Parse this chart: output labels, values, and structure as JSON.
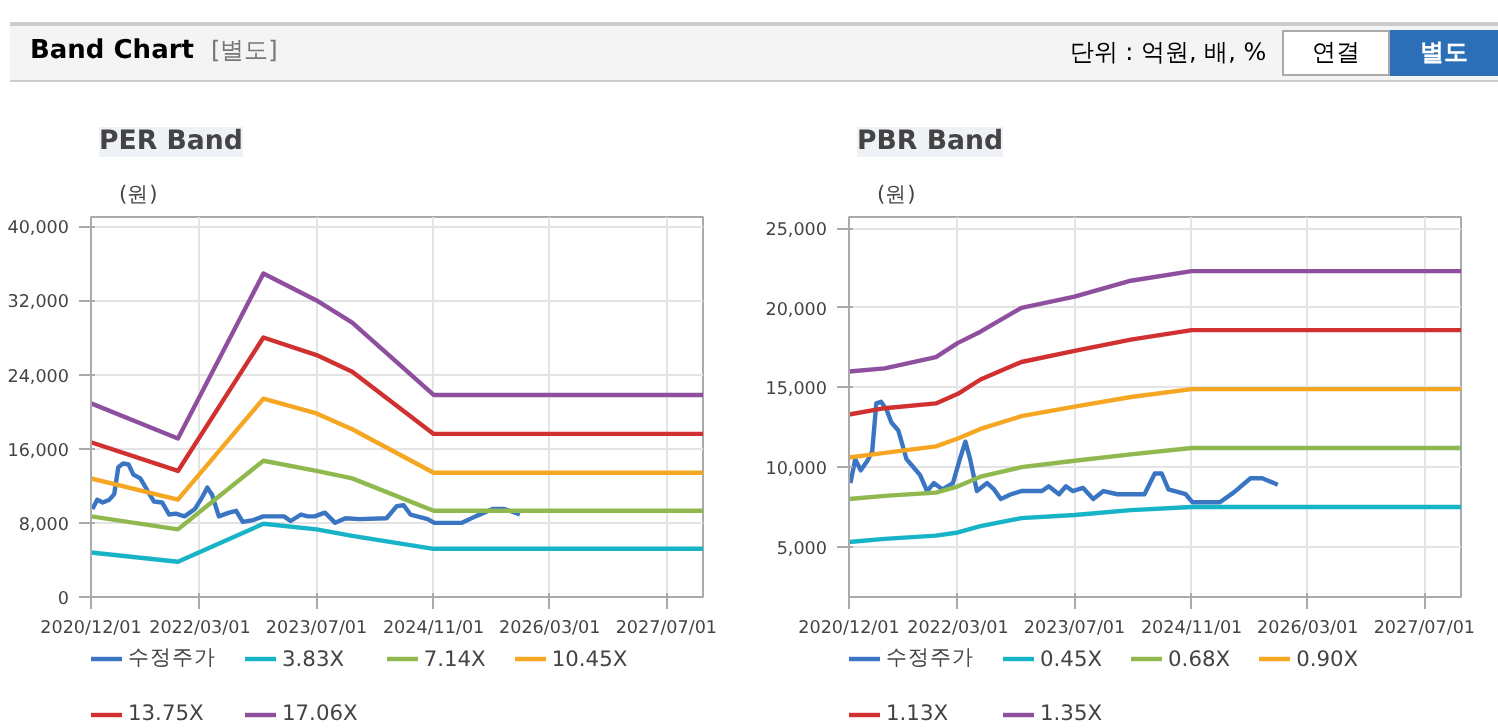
{
  "chart_data": [
    {
      "type": "line",
      "title": "PER Band",
      "ylabel": "(원)",
      "annotations": [
        "Band Chart",
        "[별도]",
        "단위 : 억원, 배, %",
        "연결",
        "별도"
      ],
      "grid": true,
      "legend": "bottom",
      "xlim": [
        "2020-12-01",
        "2027-12-01"
      ],
      "ylim": [
        0,
        41000
      ],
      "xticks": [
        {
          "value": "2020-12-01",
          "label": "2020/12/01"
        },
        {
          "value": "2022-03-01",
          "label": "2022/03/01"
        },
        {
          "value": "2023-07-01",
          "label": "2023/07/01"
        },
        {
          "value": "2024-11-01",
          "label": "2024/11/01"
        },
        {
          "value": "2026-03-01",
          "label": "2026/03/01"
        },
        {
          "value": "2027-07-01",
          "label": "2027/07/01"
        }
      ],
      "yticks": [
        0,
        {
          "value": 8000,
          "label": "8,000"
        },
        {
          "value": 16000,
          "label": "16,000"
        },
        {
          "value": 24000,
          "label": "24,000"
        },
        {
          "value": 32000,
          "label": "32,000"
        },
        {
          "value": 40000,
          "label": "40,000"
        }
      ],
      "series": [
        {
          "name": "수정주가",
          "color": "#3a75c4",
          "x": [
            "2020-12-07",
            "2020-12-27",
            "2021-01-19",
            "2021-02-16",
            "2021-03-08",
            "2021-03-25",
            "2021-04-14",
            "2021-05-07",
            "2021-05-27",
            "2021-06-25",
            "2021-07-29",
            "2021-08-21",
            "2021-09-24",
            "2021-10-23",
            "2021-11-20",
            "2021-12-27",
            "2022-02-08",
            "2022-03-09",
            "2022-04-01",
            "2022-04-21",
            "2022-05-19",
            "2022-07-01",
            "2022-07-30",
            "2022-08-27",
            "2022-10-09",
            "2022-11-21",
            "2023-02-15",
            "2023-03-15",
            "2023-04-27",
            "2023-05-26",
            "2023-06-23",
            "2023-08-05",
            "2023-09-17",
            "2023-10-30",
            "2023-12-26",
            "2024-04-18",
            "2024-05-31",
            "2024-06-29",
            "2024-07-27",
            "2024-10-07",
            "2024-11-04",
            "2025-02-27",
            "2025-04-25",
            "2025-07-05",
            "2025-08-23",
            "2025-10-27"
          ],
          "values": [
            9500,
            10500,
            10200,
            10500,
            11100,
            14000,
            14400,
            14300,
            13200,
            12800,
            11300,
            10300,
            10200,
            8900,
            9000,
            8700,
            9500,
            10700,
            11800,
            11000,
            8700,
            9100,
            9300,
            8100,
            8300,
            8700,
            8700,
            8200,
            8900,
            8700,
            8700,
            9100,
            8000,
            8500,
            8400,
            8500,
            9800,
            9900,
            8900,
            8400,
            8000,
            8000,
            8700,
            9500,
            9500,
            8900
          ]
        },
        {
          "name": "3.83X",
          "color": "#17b3c7",
          "x": [
            "2020-12-01",
            "2021-11-29",
            "2022-11-21",
            "2023-07-01",
            "2023-11-27",
            "2024-11-01",
            "2027-12-01"
          ],
          "values": [
            4800,
            3800,
            7900,
            7300,
            6600,
            5200,
            5200
          ]
        },
        {
          "name": "7.14X",
          "color": "#8fb84f",
          "x": [
            "2020-12-01",
            "2021-11-29",
            "2022-11-21",
            "2023-07-01",
            "2023-11-27",
            "2024-11-01",
            "2027-12-01"
          ],
          "values": [
            8700,
            7300,
            14700,
            13600,
            12800,
            9300,
            9300
          ]
        },
        {
          "name": "10.45X",
          "color": "#f5a623",
          "x": [
            "2020-12-01",
            "2021-11-29",
            "2022-11-21",
            "2023-07-01",
            "2023-11-27",
            "2024-11-01",
            "2027-12-01"
          ],
          "values": [
            12800,
            10500,
            21400,
            19800,
            18100,
            13400,
            13400
          ]
        },
        {
          "name": "13.75X",
          "color": "#d03030",
          "x": [
            "2020-12-01",
            "2021-11-29",
            "2022-11-21",
            "2023-07-01",
            "2023-11-27",
            "2024-11-01",
            "2027-12-01"
          ],
          "values": [
            16700,
            13600,
            28000,
            26100,
            24300,
            17600,
            17600
          ]
        },
        {
          "name": "17.06X",
          "color": "#8e4f9e",
          "x": [
            "2020-12-01",
            "2021-11-29",
            "2022-11-21",
            "2023-07-01",
            "2023-11-27",
            "2024-11-01",
            "2027-12-01"
          ],
          "values": [
            20900,
            17100,
            34900,
            32000,
            29600,
            21800,
            21800
          ]
        }
      ]
    },
    {
      "type": "line",
      "title": "PBR Band",
      "ylabel": "(원)",
      "grid": true,
      "legend": "bottom",
      "xlim": [
        "2020-12-01",
        "2027-12-01"
      ],
      "ylim": [
        1850,
        25700
      ],
      "xticks": [
        {
          "value": "2020-12-01",
          "label": "2020/12/01"
        },
        {
          "value": "2022-03-01",
          "label": "2022/03/01"
        },
        {
          "value": "2023-07-01",
          "label": "2023/07/01"
        },
        {
          "value": "2024-11-01",
          "label": "2024/11/01"
        },
        {
          "value": "2026-03-01",
          "label": "2026/03/01"
        },
        {
          "value": "2027-07-01",
          "label": "2027/07/01"
        }
      ],
      "yticks": [
        {
          "value": 5000,
          "label": "5,000"
        },
        {
          "value": 10000,
          "label": "10,000"
        },
        {
          "value": 15000,
          "label": "15,000"
        },
        {
          "value": 20000,
          "label": "20,000"
        },
        {
          "value": 25000,
          "label": "25,000"
        }
      ],
      "series": [
        {
          "name": "수정주가",
          "color": "#3a75c4",
          "x": [
            "2020-12-07",
            "2020-12-27",
            "2021-01-19",
            "2021-02-16",
            "2021-03-08",
            "2021-03-25",
            "2021-04-14",
            "2021-05-07",
            "2021-05-27",
            "2021-06-25",
            "2021-07-29",
            "2021-08-21",
            "2021-09-24",
            "2021-10-23",
            "2021-11-20",
            "2021-12-27",
            "2022-02-08",
            "2022-03-09",
            "2022-04-01",
            "2022-04-21",
            "2022-05-19",
            "2022-07-01",
            "2022-07-30",
            "2022-08-27",
            "2022-10-09",
            "2022-11-21",
            "2023-02-15",
            "2023-03-15",
            "2023-04-27",
            "2023-05-26",
            "2023-06-23",
            "2023-08-05",
            "2023-09-17",
            "2023-10-30",
            "2023-12-26",
            "2024-04-18",
            "2024-05-31",
            "2024-06-29",
            "2024-07-27",
            "2024-10-07",
            "2024-11-04",
            "2025-02-27",
            "2025-04-25",
            "2025-07-05",
            "2025-08-23",
            "2025-10-27"
          ],
          "values": [
            9000,
            10500,
            9800,
            10400,
            11000,
            14000,
            14100,
            13600,
            12800,
            12300,
            10500,
            10100,
            9500,
            8500,
            9000,
            8600,
            9000,
            10500,
            11600,
            10500,
            8500,
            9000,
            8600,
            8000,
            8300,
            8500,
            8500,
            8800,
            8300,
            8800,
            8500,
            8700,
            8000,
            8500,
            8300,
            8300,
            9600,
            9600,
            8600,
            8300,
            7800,
            7800,
            8400,
            9300,
            9300,
            8900
          ]
        },
        {
          "name": "0.45X",
          "color": "#17b3c7",
          "x": [
            "2020-12-01",
            "2021-04-29",
            "2021-11-29",
            "2022-03-01",
            "2022-06-03",
            "2022-11-21",
            "2023-07-01",
            "2024-02-21",
            "2024-11-01",
            "2027-12-01"
          ],
          "values": [
            5300,
            5500,
            5700,
            5900,
            6300,
            6800,
            7000,
            7300,
            7500,
            7500
          ]
        },
        {
          "name": "0.68X",
          "color": "#8fb84f",
          "x": [
            "2020-12-01",
            "2021-04-29",
            "2021-11-29",
            "2022-03-01",
            "2022-06-03",
            "2022-11-21",
            "2023-07-01",
            "2024-02-21",
            "2024-11-01",
            "2027-12-01"
          ],
          "values": [
            8000,
            8200,
            8400,
            8800,
            9400,
            10000,
            10400,
            10800,
            11200,
            11200
          ]
        },
        {
          "name": "0.90X",
          "color": "#f5a623",
          "x": [
            "2020-12-01",
            "2021-04-29",
            "2021-11-29",
            "2022-03-01",
            "2022-06-03",
            "2022-11-21",
            "2023-07-01",
            "2024-02-21",
            "2024-11-01",
            "2027-12-01"
          ],
          "values": [
            10600,
            10900,
            11300,
            11800,
            12400,
            13200,
            13800,
            14400,
            14900,
            14900
          ]
        },
        {
          "name": "1.13X",
          "color": "#d03030",
          "x": [
            "2020-12-01",
            "2021-04-29",
            "2021-11-29",
            "2022-03-01",
            "2022-06-03",
            "2022-11-21",
            "2023-07-01",
            "2024-02-21",
            "2024-11-01",
            "2027-12-01"
          ],
          "values": [
            13300,
            13700,
            14000,
            14600,
            15500,
            16600,
            17300,
            18000,
            18600,
            18600
          ]
        },
        {
          "name": "1.35X",
          "color": "#8e4f9e",
          "x": [
            "2020-12-01",
            "2021-04-29",
            "2021-11-29",
            "2022-03-01",
            "2022-06-03",
            "2022-11-21",
            "2023-07-01",
            "2024-02-21",
            "2024-11-01",
            "2027-12-01"
          ],
          "values": [
            16000,
            16200,
            16900,
            17800,
            18500,
            20000,
            20700,
            21700,
            22300,
            22300
          ]
        }
      ]
    }
  ]
}
